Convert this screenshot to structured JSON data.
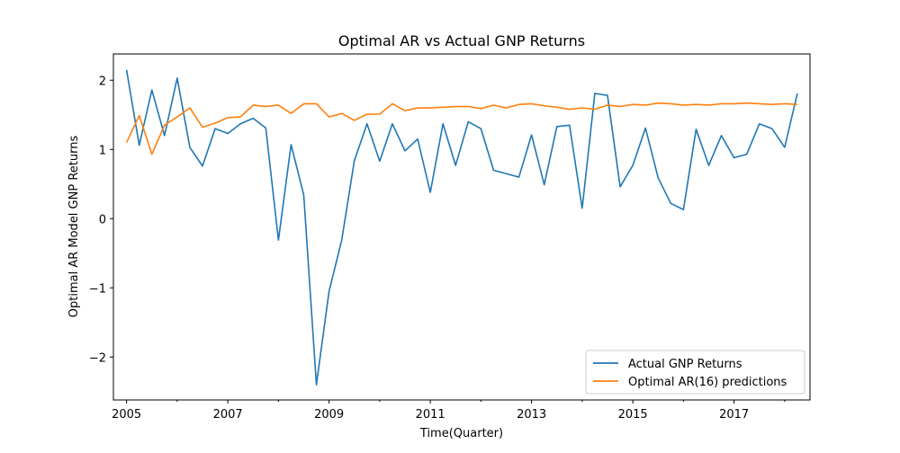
{
  "chart_data": {
    "type": "line",
    "title": "Optimal AR vs Actual GNP Returns",
    "xlabel": "Time(Quarter)",
    "ylabel": "Optimal AR Model GNP Returns",
    "xlim": [
      2004.74,
      2018.5
    ],
    "ylim": [
      -2.62,
      2.38
    ],
    "x_ticks": [
      2005,
      2007,
      2009,
      2011,
      2013,
      2015,
      2017
    ],
    "x_tick_labels": [
      "2005",
      "2007",
      "2009",
      "2011",
      "2013",
      "2015",
      "2017"
    ],
    "x_minor_ticks": [
      2006,
      2008,
      2010,
      2012,
      2014,
      2016,
      2018
    ],
    "y_ticks": [
      -2,
      -1,
      0,
      1,
      2
    ],
    "y_tick_labels": [
      "−2",
      "−1",
      "0",
      "1",
      "2"
    ],
    "grid": false,
    "legend_position": "lower-right",
    "series": [
      {
        "name": "Actual GNP Returns",
        "color": "#1f77b4",
        "x": [
          2005,
          2005.25,
          2005.5,
          2005.75,
          2006,
          2006.25,
          2006.5,
          2006.75,
          2007,
          2007.25,
          2007.5,
          2007.75,
          2008,
          2008.25,
          2008.5,
          2008.75,
          2009,
          2009.25,
          2009.5,
          2009.75,
          2010,
          2010.25,
          2010.5,
          2010.75,
          2011,
          2011.25,
          2011.5,
          2011.75,
          2012,
          2012.25,
          2012.5,
          2012.75,
          2013,
          2013.25,
          2013.5,
          2013.75,
          2014,
          2014.25,
          2014.5,
          2014.75,
          2015,
          2015.25,
          2015.5,
          2015.75,
          2016,
          2016.25,
          2016.5,
          2016.75,
          2017,
          2017.25,
          2017.5,
          2017.75,
          2018,
          2018.25
        ],
        "values": [
          2.15,
          1.06,
          1.86,
          1.2,
          2.03,
          1.03,
          0.76,
          1.3,
          1.23,
          1.37,
          1.45,
          1.31,
          -0.31,
          1.07,
          0.34,
          -2.4,
          -1.05,
          -0.31,
          0.84,
          1.37,
          0.83,
          1.37,
          0.98,
          1.15,
          0.38,
          1.37,
          0.77,
          1.4,
          1.3,
          0.7,
          0.65,
          0.6,
          1.21,
          0.49,
          1.33,
          1.35,
          0.15,
          1.81,
          1.78,
          0.46,
          0.77,
          1.31,
          0.59,
          0.22,
          0.13,
          1.29,
          0.77,
          1.2,
          0.88,
          0.93,
          1.37,
          1.3,
          1.03,
          1.81
        ]
      },
      {
        "name": "Optimal AR(16) predictions",
        "color": "#ff7f0e",
        "x": [
          2005,
          2005.25,
          2005.5,
          2005.75,
          2006,
          2006.25,
          2006.5,
          2006.75,
          2007,
          2007.25,
          2007.5,
          2007.75,
          2008,
          2008.25,
          2008.5,
          2008.75,
          2009,
          2009.25,
          2009.5,
          2009.75,
          2010,
          2010.25,
          2010.5,
          2010.75,
          2011,
          2011.25,
          2011.5,
          2011.75,
          2012,
          2012.25,
          2012.5,
          2012.75,
          2013,
          2013.25,
          2013.5,
          2013.75,
          2014,
          2014.25,
          2014.5,
          2014.75,
          2015,
          2015.25,
          2015.5,
          2015.75,
          2016,
          2016.25,
          2016.5,
          2016.75,
          2017,
          2017.25,
          2017.5,
          2017.75,
          2018,
          2018.25
        ],
        "values": [
          1.1,
          1.49,
          0.93,
          1.35,
          1.47,
          1.6,
          1.32,
          1.38,
          1.46,
          1.47,
          1.64,
          1.62,
          1.64,
          1.52,
          1.66,
          1.66,
          1.47,
          1.52,
          1.42,
          1.51,
          1.51,
          1.66,
          1.56,
          1.6,
          1.6,
          1.61,
          1.62,
          1.62,
          1.59,
          1.64,
          1.6,
          1.65,
          1.66,
          1.63,
          1.61,
          1.58,
          1.6,
          1.58,
          1.64,
          1.62,
          1.65,
          1.64,
          1.67,
          1.66,
          1.64,
          1.65,
          1.64,
          1.66,
          1.66,
          1.67,
          1.66,
          1.65,
          1.66,
          1.65
        ]
      }
    ]
  }
}
